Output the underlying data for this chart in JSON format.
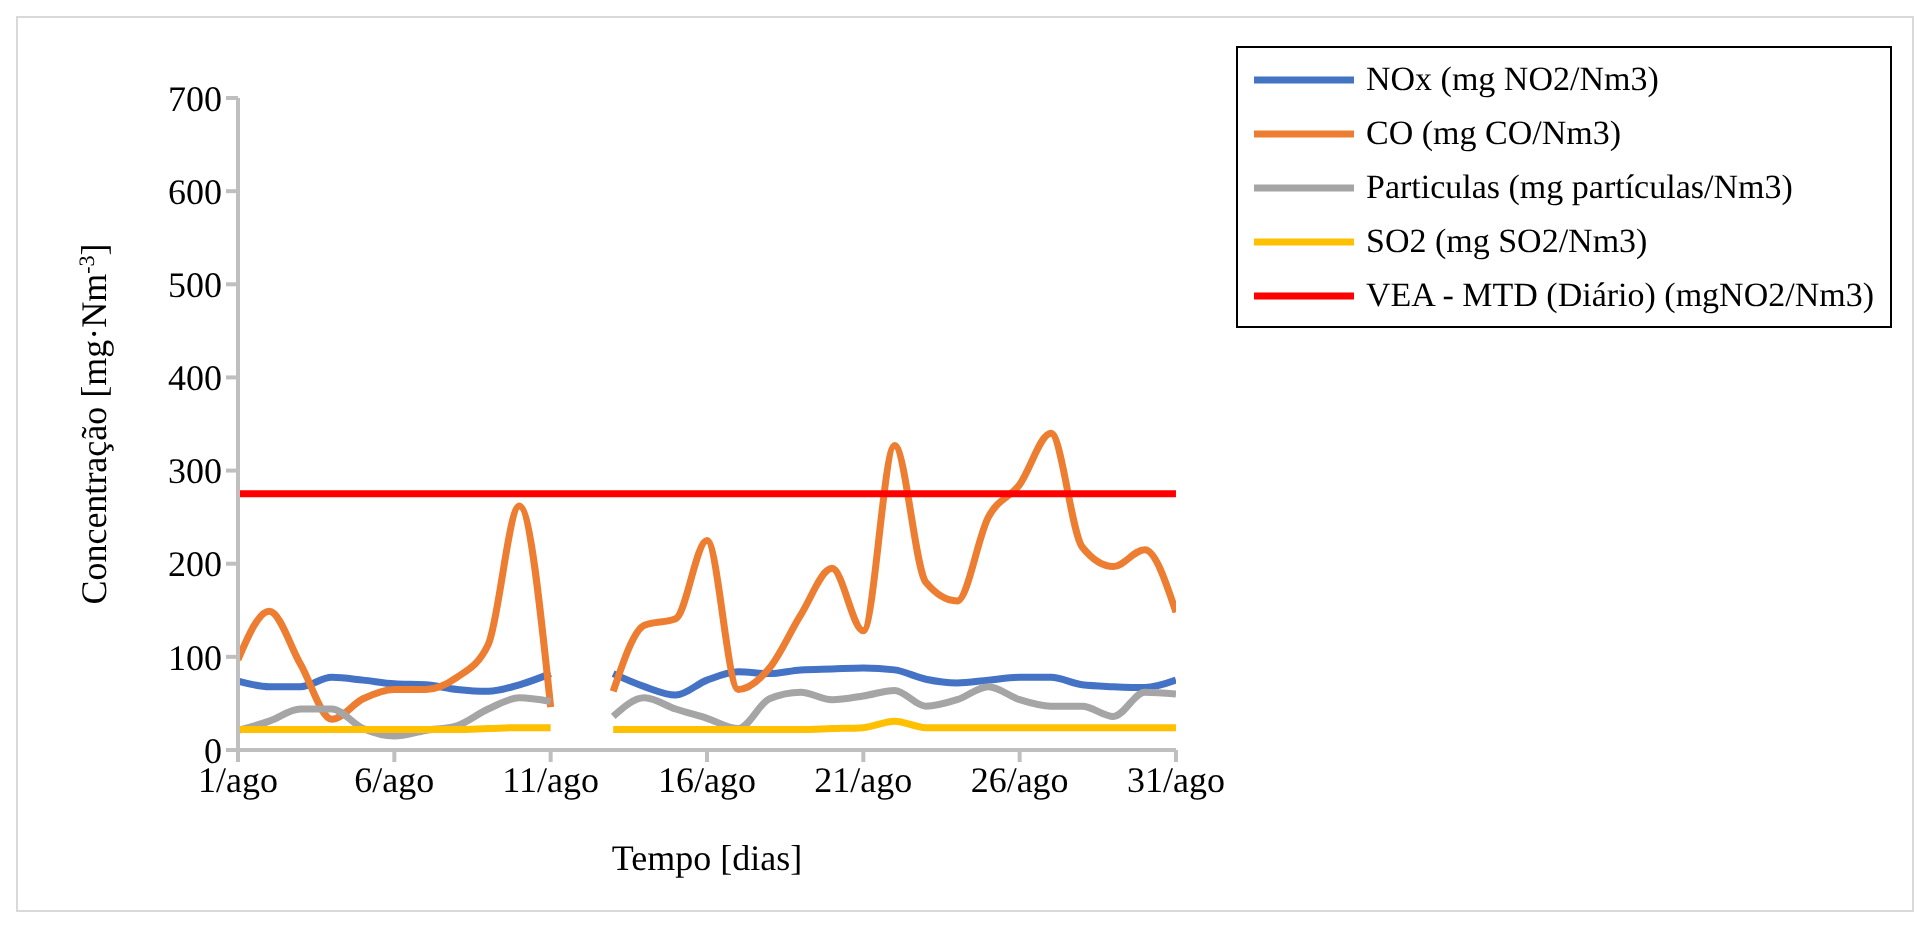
{
  "chart_data": {
    "type": "line",
    "xlabel": "Tempo [dias]",
    "ylabel": "Concentração [mg·Nm$^{-3}$]",
    "x": [
      1,
      2,
      3,
      4,
      5,
      6,
      7,
      8,
      9,
      10,
      11,
      12,
      13,
      14,
      15,
      16,
      17,
      18,
      19,
      20,
      21,
      22,
      23,
      24,
      25,
      26,
      27,
      28,
      29,
      30,
      31
    ],
    "xlim": [
      1,
      31
    ],
    "xticks": [
      {
        "value": 1,
        "label": "1/ago"
      },
      {
        "value": 6,
        "label": "6/ago"
      },
      {
        "value": 11,
        "label": "11/ago"
      },
      {
        "value": 16,
        "label": "16/ago"
      },
      {
        "value": 21,
        "label": "21/ago"
      },
      {
        "value": 26,
        "label": "26/ago"
      },
      {
        "value": 31,
        "label": "31/ago"
      }
    ],
    "ylim": [
      0,
      700
    ],
    "yticks": [
      0,
      100,
      200,
      300,
      400,
      500,
      600,
      700
    ],
    "grid": false,
    "legend": "top right",
    "marker": "none",
    "line_style": "solid",
    "series": [
      {
        "name": "NOx  (mg NO2/Nm3)",
        "color": "#4472c4",
        "values": [
          74,
          68,
          68,
          78,
          75,
          71,
          70,
          65,
          63,
          70,
          82,
          null,
          82,
          68,
          59,
          75,
          84,
          82,
          86,
          87,
          88,
          86,
          76,
          72,
          75,
          78,
          78,
          70,
          68,
          67,
          75
        ]
      },
      {
        "name": "CO  (mg CO/Nm3)",
        "color": "#ed7d31",
        "values": [
          97,
          149,
          92,
          33,
          55,
          65,
          65,
          78,
          113,
          262,
          46,
          null,
          63,
          134,
          141,
          225,
          65,
          88,
          145,
          195,
          128,
          327,
          180,
          160,
          250,
          285,
          340,
          218,
          197,
          215,
          148
        ]
      },
      {
        "name": "Particulas   (mg partículas/Nm3)",
        "color": "#a5a5a5",
        "values": [
          21,
          31,
          44,
          44,
          23,
          15,
          21,
          26,
          44,
          56,
          52,
          null,
          36,
          56,
          44,
          34,
          23,
          55,
          62,
          54,
          58,
          64,
          47,
          54,
          68,
          54,
          47,
          47,
          36,
          62,
          60
        ]
      },
      {
        "name": "SO2  (mg SO2/Nm3)",
        "color": "#ffc000",
        "values": [
          22,
          22,
          22,
          22,
          22,
          22,
          22,
          22,
          23,
          24,
          24,
          null,
          22,
          22,
          22,
          22,
          22,
          22,
          22,
          23,
          24,
          31,
          24,
          24,
          24,
          24,
          24,
          24,
          24,
          24,
          24
        ]
      },
      {
        "name": "VEA - MTD (Diário) (mgNO2/Nm3)",
        "color": "#ff0000",
        "values": [
          275,
          275,
          275,
          275,
          275,
          275,
          275,
          275,
          275,
          275,
          275,
          275,
          275,
          275,
          275,
          275,
          275,
          275,
          275,
          275,
          275,
          275,
          275,
          275,
          275,
          275,
          275,
          275,
          275,
          275,
          275
        ]
      }
    ]
  }
}
